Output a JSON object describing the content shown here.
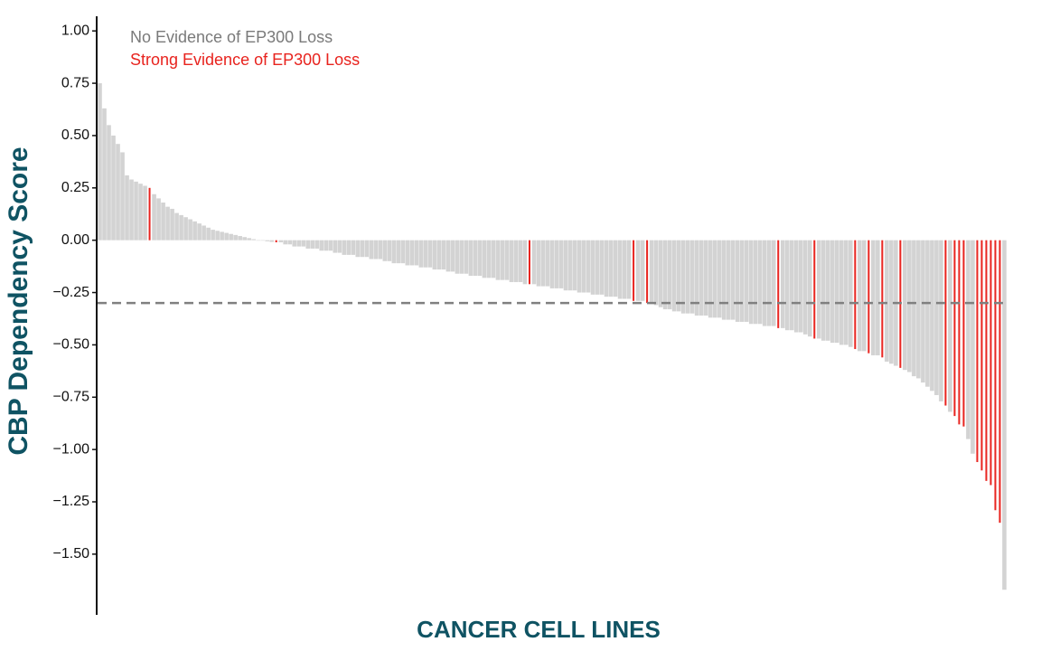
{
  "chart_data": {
    "type": "bar",
    "x_label": "CANCER CELL LINES",
    "y_label": "CBP Dependency Score",
    "ylim": [
      -1.79,
      1.07
    ],
    "yticks": [
      {
        "value": 1,
        "label": "1.00"
      },
      {
        "value": 0.75,
        "label": "0.75"
      },
      {
        "value": 0.5,
        "label": "0.50"
      },
      {
        "value": 0.25,
        "label": "0.25"
      },
      {
        "value": 0,
        "label": "0.00"
      },
      {
        "value": -0.25,
        "label": "−0.25"
      },
      {
        "value": -0.5,
        "label": "−0.50"
      },
      {
        "value": -0.75,
        "label": "−0.75"
      },
      {
        "value": -1,
        "label": "−1.00"
      },
      {
        "value": -1.25,
        "label": "−1.25"
      },
      {
        "value": -1.5,
        "label": "−1.50"
      }
    ],
    "threshold": -0.3,
    "legend": "top-left",
    "series": [
      {
        "name": "No Evidence of EP300 Loss",
        "color": "#d3d3d3",
        "values": [
          0.75,
          0.63,
          0.55,
          0.5,
          0.46,
          0.42,
          0.31,
          0.29,
          0.28,
          0.27,
          0.26,
          null,
          0.22,
          0.2,
          0.18,
          0.16,
          0.15,
          0.13,
          0.12,
          0.11,
          0.1,
          0.09,
          0.08,
          0.07,
          0.06,
          0.05,
          0.045,
          0.04,
          0.035,
          0.03,
          0.025,
          0.02,
          0.015,
          0.01,
          0.005,
          0,
          -0.002,
          -0.005,
          -0.008,
          null,
          -0.01,
          -0.02,
          -0.02,
          -0.03,
          -0.03,
          -0.03,
          -0.04,
          -0.04,
          -0.04,
          -0.05,
          -0.05,
          -0.05,
          -0.06,
          -0.06,
          -0.07,
          -0.07,
          -0.07,
          -0.08,
          -0.08,
          -0.08,
          -0.09,
          -0.09,
          -0.09,
          -0.1,
          -0.1,
          -0.11,
          -0.11,
          -0.11,
          -0.12,
          -0.12,
          -0.12,
          -0.13,
          -0.13,
          -0.13,
          -0.14,
          -0.14,
          -0.14,
          -0.15,
          -0.15,
          -0.16,
          -0.16,
          -0.16,
          -0.17,
          -0.17,
          -0.17,
          -0.18,
          -0.18,
          -0.18,
          -0.19,
          -0.19,
          -0.19,
          -0.2,
          -0.2,
          -0.2,
          -0.21,
          null,
          -0.21,
          -0.22,
          -0.22,
          -0.22,
          -0.23,
          -0.23,
          -0.23,
          -0.24,
          -0.24,
          -0.24,
          -0.25,
          -0.25,
          -0.25,
          -0.26,
          -0.26,
          -0.26,
          -0.27,
          -0.27,
          -0.27,
          -0.28,
          -0.28,
          -0.28,
          null,
          -0.29,
          -0.29,
          null,
          -0.3,
          -0.31,
          -0.32,
          -0.33,
          -0.33,
          -0.34,
          -0.34,
          -0.35,
          -0.35,
          -0.35,
          -0.36,
          -0.36,
          -0.36,
          -0.37,
          -0.37,
          -0.37,
          -0.38,
          -0.38,
          -0.38,
          -0.39,
          -0.39,
          -0.39,
          -0.4,
          -0.4,
          -0.4,
          -0.41,
          -0.41,
          -0.41,
          null,
          -0.42,
          -0.43,
          -0.43,
          -0.44,
          -0.44,
          -0.45,
          -0.46,
          null,
          -0.47,
          -0.48,
          -0.48,
          -0.49,
          -0.49,
          -0.5,
          -0.5,
          -0.51,
          null,
          -0.53,
          -0.53,
          null,
          -0.55,
          -0.55,
          null,
          -0.58,
          -0.59,
          -0.6,
          null,
          -0.62,
          -0.63,
          -0.65,
          -0.66,
          -0.68,
          -0.7,
          -0.72,
          -0.74,
          -0.77,
          null,
          -0.82,
          null,
          null,
          null,
          -0.95,
          -1.02,
          null,
          null,
          null,
          null,
          null,
          null,
          -1.67
        ]
      },
      {
        "name": "Strong Evidence of EP300 Loss",
        "color": "#e8231e",
        "values": [
          null,
          null,
          null,
          null,
          null,
          null,
          null,
          null,
          null,
          null,
          null,
          0.25,
          null,
          null,
          null,
          null,
          null,
          null,
          null,
          null,
          null,
          null,
          null,
          null,
          null,
          null,
          null,
          null,
          null,
          null,
          null,
          null,
          null,
          null,
          null,
          null,
          null,
          null,
          null,
          -0.01,
          null,
          null,
          null,
          null,
          null,
          null,
          null,
          null,
          null,
          null,
          null,
          null,
          null,
          null,
          null,
          null,
          null,
          null,
          null,
          null,
          null,
          null,
          null,
          null,
          null,
          null,
          null,
          null,
          null,
          null,
          null,
          null,
          null,
          null,
          null,
          null,
          null,
          null,
          null,
          null,
          null,
          null,
          null,
          null,
          null,
          null,
          null,
          null,
          null,
          null,
          null,
          null,
          null,
          null,
          null,
          -0.21,
          null,
          null,
          null,
          null,
          null,
          null,
          null,
          null,
          null,
          null,
          null,
          null,
          null,
          null,
          null,
          null,
          null,
          null,
          null,
          null,
          null,
          null,
          -0.29,
          null,
          null,
          -0.3,
          null,
          null,
          null,
          null,
          null,
          null,
          null,
          null,
          null,
          null,
          null,
          null,
          null,
          null,
          null,
          null,
          null,
          null,
          null,
          null,
          null,
          null,
          null,
          null,
          null,
          null,
          null,
          null,
          -0.42,
          null,
          null,
          null,
          null,
          null,
          null,
          null,
          -0.47,
          null,
          null,
          null,
          null,
          null,
          null,
          null,
          null,
          -0.52,
          null,
          null,
          -0.54,
          null,
          null,
          -0.56,
          null,
          null,
          null,
          -0.61,
          null,
          null,
          null,
          null,
          null,
          null,
          null,
          null,
          null,
          -0.79,
          null,
          -0.84,
          -0.88,
          -0.89,
          null,
          null,
          -1.06,
          -1.1,
          -1.15,
          -1.17,
          -1.29,
          -1.35,
          null
        ]
      }
    ]
  }
}
